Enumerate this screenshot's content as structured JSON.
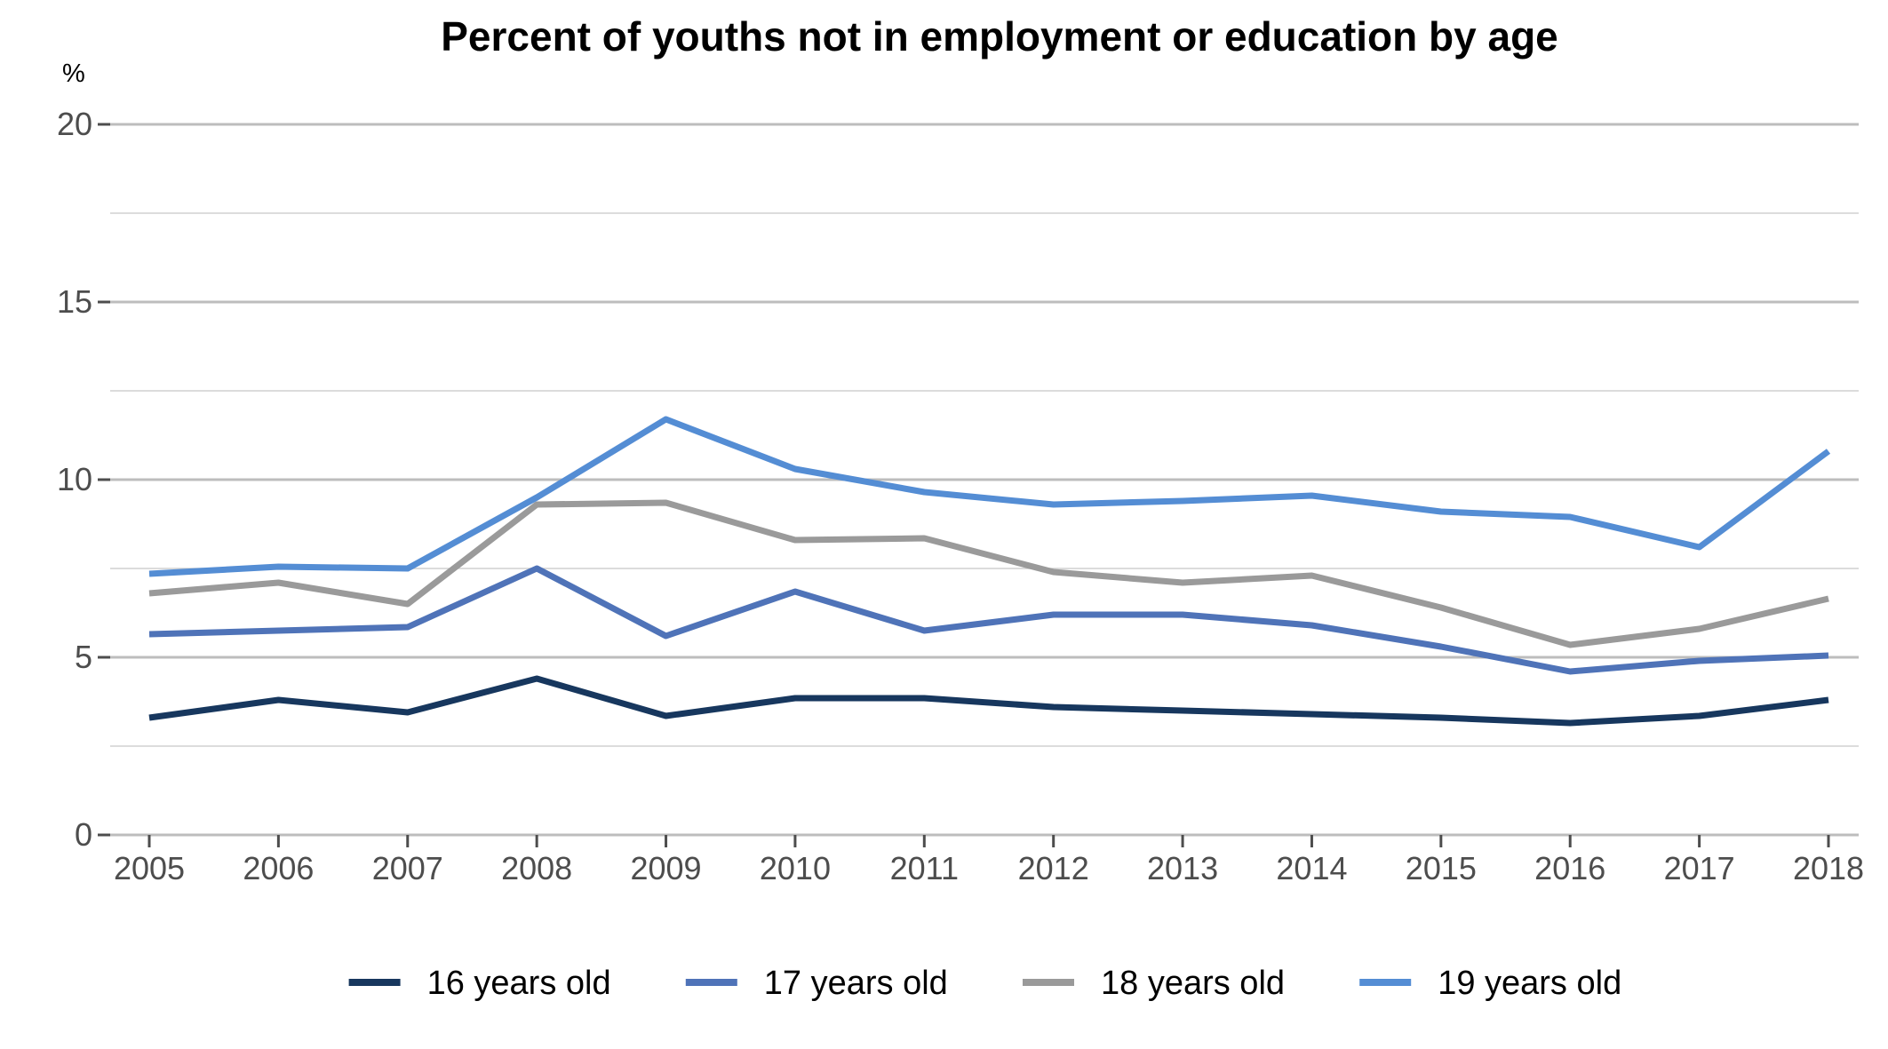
{
  "chart_data": {
    "type": "line",
    "title": "Percent of youths not in employment or education by age",
    "unit_label": "%",
    "xlabel": "",
    "ylabel": "",
    "x": [
      2005,
      2006,
      2007,
      2008,
      2009,
      2010,
      2011,
      2012,
      2013,
      2014,
      2015,
      2016,
      2017,
      2018
    ],
    "ylim": [
      0,
      20
    ],
    "y_ticks": [
      0,
      5,
      10,
      15,
      20
    ],
    "y_minor_ticks": [
      2.5,
      7.5,
      12.5,
      17.5
    ],
    "grid": true,
    "legend_position": "bottom",
    "series": [
      {
        "name": "16 years old",
        "color": "#17375e",
        "values": [
          3.3,
          3.8,
          3.45,
          4.4,
          3.35,
          3.85,
          3.85,
          3.6,
          3.5,
          3.4,
          3.3,
          3.15,
          3.35,
          3.8
        ]
      },
      {
        "name": "17 years old",
        "color": "#4f73b8",
        "values": [
          5.65,
          5.75,
          5.85,
          7.5,
          5.6,
          6.85,
          5.75,
          6.2,
          6.2,
          5.9,
          5.3,
          4.6,
          4.9,
          5.05
        ]
      },
      {
        "name": "18 years old",
        "color": "#9a9a9a",
        "values": [
          6.8,
          7.1,
          6.5,
          9.3,
          9.35,
          8.3,
          8.35,
          7.4,
          7.1,
          7.3,
          6.4,
          5.35,
          5.8,
          6.65
        ]
      },
      {
        "name": "19 years old",
        "color": "#548dd4",
        "values": [
          7.35,
          7.55,
          7.5,
          9.5,
          11.7,
          10.3,
          9.65,
          9.3,
          9.4,
          9.55,
          9.1,
          8.95,
          8.1,
          10.8
        ]
      }
    ]
  }
}
